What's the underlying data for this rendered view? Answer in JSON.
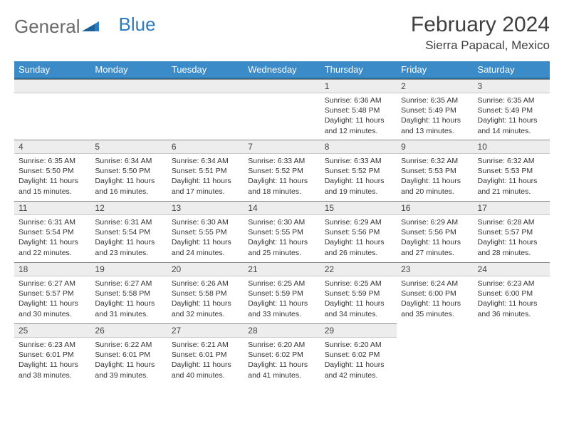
{
  "logo": {
    "word1": "General",
    "word2": "Blue"
  },
  "header": {
    "title": "February 2024",
    "location": "Sierra Papacal, Mexico"
  },
  "colors": {
    "header_bg": "#3b8bc8",
    "header_border": "#2a6ea0",
    "daynum_bg": "#ededed",
    "daynum_border_top": "#8a8a8a",
    "text": "#333333",
    "logo_gray": "#6a6a6a",
    "logo_blue": "#2e7cc0"
  },
  "daysOfWeek": [
    "Sunday",
    "Monday",
    "Tuesday",
    "Wednesday",
    "Thursday",
    "Friday",
    "Saturday"
  ],
  "weeks": [
    [
      null,
      null,
      null,
      null,
      {
        "n": "1",
        "sr": "Sunrise: 6:36 AM",
        "ss": "Sunset: 5:48 PM",
        "d1": "Daylight: 11 hours",
        "d2": "and 12 minutes."
      },
      {
        "n": "2",
        "sr": "Sunrise: 6:35 AM",
        "ss": "Sunset: 5:49 PM",
        "d1": "Daylight: 11 hours",
        "d2": "and 13 minutes."
      },
      {
        "n": "3",
        "sr": "Sunrise: 6:35 AM",
        "ss": "Sunset: 5:49 PM",
        "d1": "Daylight: 11 hours",
        "d2": "and 14 minutes."
      }
    ],
    [
      {
        "n": "4",
        "sr": "Sunrise: 6:35 AM",
        "ss": "Sunset: 5:50 PM",
        "d1": "Daylight: 11 hours",
        "d2": "and 15 minutes."
      },
      {
        "n": "5",
        "sr": "Sunrise: 6:34 AM",
        "ss": "Sunset: 5:50 PM",
        "d1": "Daylight: 11 hours",
        "d2": "and 16 minutes."
      },
      {
        "n": "6",
        "sr": "Sunrise: 6:34 AM",
        "ss": "Sunset: 5:51 PM",
        "d1": "Daylight: 11 hours",
        "d2": "and 17 minutes."
      },
      {
        "n": "7",
        "sr": "Sunrise: 6:33 AM",
        "ss": "Sunset: 5:52 PM",
        "d1": "Daylight: 11 hours",
        "d2": "and 18 minutes."
      },
      {
        "n": "8",
        "sr": "Sunrise: 6:33 AM",
        "ss": "Sunset: 5:52 PM",
        "d1": "Daylight: 11 hours",
        "d2": "and 19 minutes."
      },
      {
        "n": "9",
        "sr": "Sunrise: 6:32 AM",
        "ss": "Sunset: 5:53 PM",
        "d1": "Daylight: 11 hours",
        "d2": "and 20 minutes."
      },
      {
        "n": "10",
        "sr": "Sunrise: 6:32 AM",
        "ss": "Sunset: 5:53 PM",
        "d1": "Daylight: 11 hours",
        "d2": "and 21 minutes."
      }
    ],
    [
      {
        "n": "11",
        "sr": "Sunrise: 6:31 AM",
        "ss": "Sunset: 5:54 PM",
        "d1": "Daylight: 11 hours",
        "d2": "and 22 minutes."
      },
      {
        "n": "12",
        "sr": "Sunrise: 6:31 AM",
        "ss": "Sunset: 5:54 PM",
        "d1": "Daylight: 11 hours",
        "d2": "and 23 minutes."
      },
      {
        "n": "13",
        "sr": "Sunrise: 6:30 AM",
        "ss": "Sunset: 5:55 PM",
        "d1": "Daylight: 11 hours",
        "d2": "and 24 minutes."
      },
      {
        "n": "14",
        "sr": "Sunrise: 6:30 AM",
        "ss": "Sunset: 5:55 PM",
        "d1": "Daylight: 11 hours",
        "d2": "and 25 minutes."
      },
      {
        "n": "15",
        "sr": "Sunrise: 6:29 AM",
        "ss": "Sunset: 5:56 PM",
        "d1": "Daylight: 11 hours",
        "d2": "and 26 minutes."
      },
      {
        "n": "16",
        "sr": "Sunrise: 6:29 AM",
        "ss": "Sunset: 5:56 PM",
        "d1": "Daylight: 11 hours",
        "d2": "and 27 minutes."
      },
      {
        "n": "17",
        "sr": "Sunrise: 6:28 AM",
        "ss": "Sunset: 5:57 PM",
        "d1": "Daylight: 11 hours",
        "d2": "and 28 minutes."
      }
    ],
    [
      {
        "n": "18",
        "sr": "Sunrise: 6:27 AM",
        "ss": "Sunset: 5:57 PM",
        "d1": "Daylight: 11 hours",
        "d2": "and 30 minutes."
      },
      {
        "n": "19",
        "sr": "Sunrise: 6:27 AM",
        "ss": "Sunset: 5:58 PM",
        "d1": "Daylight: 11 hours",
        "d2": "and 31 minutes."
      },
      {
        "n": "20",
        "sr": "Sunrise: 6:26 AM",
        "ss": "Sunset: 5:58 PM",
        "d1": "Daylight: 11 hours",
        "d2": "and 32 minutes."
      },
      {
        "n": "21",
        "sr": "Sunrise: 6:25 AM",
        "ss": "Sunset: 5:59 PM",
        "d1": "Daylight: 11 hours",
        "d2": "and 33 minutes."
      },
      {
        "n": "22",
        "sr": "Sunrise: 6:25 AM",
        "ss": "Sunset: 5:59 PM",
        "d1": "Daylight: 11 hours",
        "d2": "and 34 minutes."
      },
      {
        "n": "23",
        "sr": "Sunrise: 6:24 AM",
        "ss": "Sunset: 6:00 PM",
        "d1": "Daylight: 11 hours",
        "d2": "and 35 minutes."
      },
      {
        "n": "24",
        "sr": "Sunrise: 6:23 AM",
        "ss": "Sunset: 6:00 PM",
        "d1": "Daylight: 11 hours",
        "d2": "and 36 minutes."
      }
    ],
    [
      {
        "n": "25",
        "sr": "Sunrise: 6:23 AM",
        "ss": "Sunset: 6:01 PM",
        "d1": "Daylight: 11 hours",
        "d2": "and 38 minutes."
      },
      {
        "n": "26",
        "sr": "Sunrise: 6:22 AM",
        "ss": "Sunset: 6:01 PM",
        "d1": "Daylight: 11 hours",
        "d2": "and 39 minutes."
      },
      {
        "n": "27",
        "sr": "Sunrise: 6:21 AM",
        "ss": "Sunset: 6:01 PM",
        "d1": "Daylight: 11 hours",
        "d2": "and 40 minutes."
      },
      {
        "n": "28",
        "sr": "Sunrise: 6:20 AM",
        "ss": "Sunset: 6:02 PM",
        "d1": "Daylight: 11 hours",
        "d2": "and 41 minutes."
      },
      {
        "n": "29",
        "sr": "Sunrise: 6:20 AM",
        "ss": "Sunset: 6:02 PM",
        "d1": "Daylight: 11 hours",
        "d2": "and 42 minutes."
      },
      null,
      null
    ]
  ]
}
